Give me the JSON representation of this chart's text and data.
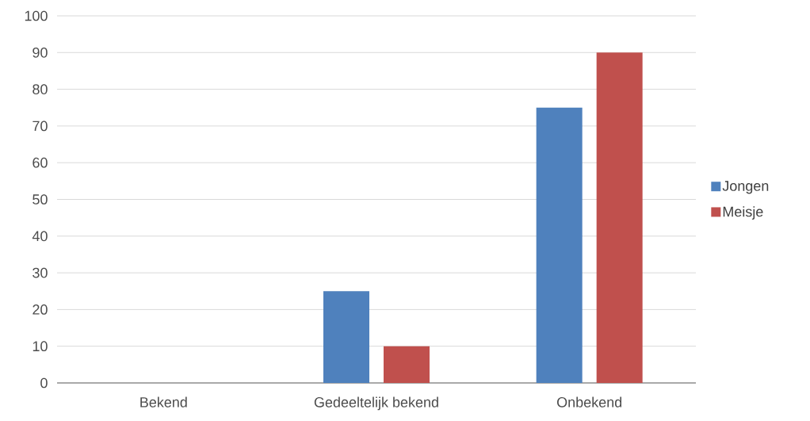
{
  "chart_data": {
    "type": "bar",
    "categories": [
      "Bekend",
      "Gedeeltelijk bekend",
      "Onbekend"
    ],
    "series": [
      {
        "name": "Jongen",
        "color": "#4f81bd",
        "values": [
          0,
          25,
          75
        ]
      },
      {
        "name": "Meisje",
        "color": "#c0504d",
        "values": [
          0,
          10,
          90
        ]
      }
    ],
    "ylim": [
      0,
      100
    ],
    "yticks": [
      0,
      10,
      20,
      30,
      40,
      50,
      60,
      70,
      80,
      90,
      100
    ],
    "grid": "y",
    "legend": "right"
  }
}
